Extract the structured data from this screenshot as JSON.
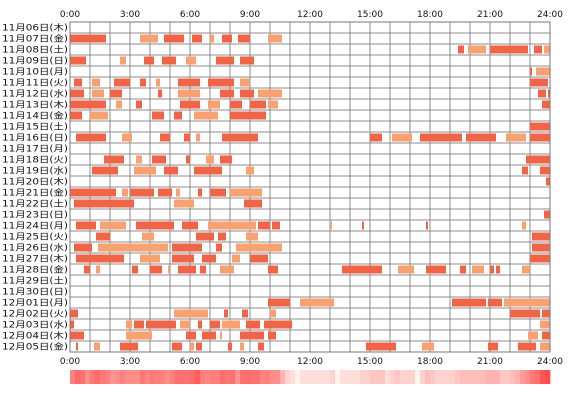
{
  "chart_data": {
    "type": "heatmap",
    "x_ticks": [
      "0:00",
      "3:00",
      "6:00",
      "9:00",
      "12:00",
      "15:00",
      "18:00",
      "21:00",
      "24:00"
    ],
    "x_range_hours": [
      0,
      24
    ],
    "grid": true,
    "colors": {
      "segment_dark": "#f06548",
      "segment_light": "#f8a272",
      "grid": "#8c8c8c",
      "frame": "#777777",
      "density_low": "#fff4ee",
      "density_high": "#ff4c4c"
    },
    "rows": [
      {
        "label": "11月06日(木)",
        "segments": []
      },
      {
        "label": "11月07日(金)",
        "segments": [
          [
            0.0,
            1.8
          ],
          [
            3.5,
            4.4
          ],
          [
            4.7,
            5.7
          ],
          [
            6.1,
            6.6
          ],
          [
            7.0,
            7.2
          ],
          [
            7.6,
            8.1
          ],
          [
            8.4,
            9.0
          ],
          [
            9.9,
            10.6
          ]
        ]
      },
      {
        "label": "11月08日(土)",
        "segments": [
          [
            19.4,
            19.7
          ],
          [
            19.9,
            20.8
          ],
          [
            21.0,
            22.9
          ],
          [
            23.2,
            23.6
          ],
          [
            23.7,
            24.0
          ]
        ]
      },
      {
        "label": "11月09日(日)",
        "segments": [
          [
            0.0,
            0.8
          ],
          [
            2.5,
            2.8
          ],
          [
            3.7,
            4.2
          ],
          [
            4.6,
            5.3
          ],
          [
            5.8,
            6.3
          ],
          [
            7.3,
            8.2
          ],
          [
            8.5,
            9.2
          ]
        ]
      },
      {
        "label": "11月10日(月)",
        "segments": [
          [
            23.0,
            23.1
          ],
          [
            23.3,
            24.0
          ]
        ]
      },
      {
        "label": "11月11日(火)",
        "segments": [
          [
            0.2,
            0.6
          ],
          [
            1.1,
            1.5
          ],
          [
            2.2,
            3.0
          ],
          [
            3.5,
            3.8
          ],
          [
            4.3,
            4.5
          ],
          [
            5.4,
            6.5
          ],
          [
            6.9,
            8.2
          ],
          [
            8.5,
            9.0
          ],
          [
            23.0,
            23.9
          ]
        ]
      },
      {
        "label": "11月12日(水)",
        "segments": [
          [
            0.0,
            0.7
          ],
          [
            1.1,
            1.7
          ],
          [
            2.0,
            2.6
          ],
          [
            4.4,
            4.6
          ],
          [
            5.4,
            6.5
          ],
          [
            7.5,
            8.2
          ],
          [
            8.5,
            9.2
          ],
          [
            9.4,
            10.6
          ],
          [
            23.4,
            23.8
          ],
          [
            23.9,
            24.0
          ]
        ]
      },
      {
        "label": "11月13日(木)",
        "segments": [
          [
            0.0,
            1.8
          ],
          [
            2.3,
            2.6
          ],
          [
            3.3,
            3.6
          ],
          [
            5.5,
            6.5
          ],
          [
            6.9,
            7.5
          ],
          [
            8.0,
            8.6
          ],
          [
            9.0,
            9.8
          ],
          [
            9.9,
            10.4
          ],
          [
            23.6,
            24.0
          ]
        ]
      },
      {
        "label": "11月14日(金)",
        "segments": [
          [
            0.0,
            0.6
          ],
          [
            1.0,
            1.9
          ],
          [
            4.1,
            4.7
          ],
          [
            5.2,
            5.6
          ],
          [
            6.2,
            7.4
          ],
          [
            8.0,
            9.8
          ]
        ]
      },
      {
        "label": "11月15日(土)",
        "segments": [
          [
            23.0,
            24.0
          ]
        ]
      },
      {
        "label": "11月16日(日)",
        "segments": [
          [
            0.3,
            1.8
          ],
          [
            2.6,
            3.1
          ],
          [
            4.5,
            5.0
          ],
          [
            5.7,
            6.0
          ],
          [
            6.3,
            6.5
          ],
          [
            7.6,
            9.4
          ],
          [
            15.0,
            15.6
          ],
          [
            16.1,
            17.1
          ],
          [
            17.5,
            19.6
          ],
          [
            19.8,
            21.3
          ],
          [
            21.8,
            22.8
          ],
          [
            23.0,
            24.0
          ]
        ]
      },
      {
        "label": "11月17日(月)",
        "segments": []
      },
      {
        "label": "11月18日(火)",
        "segments": [
          [
            1.7,
            2.7
          ],
          [
            3.3,
            3.6
          ],
          [
            4.1,
            4.8
          ],
          [
            5.8,
            6.0
          ],
          [
            6.8,
            7.2
          ],
          [
            7.5,
            8.1
          ],
          [
            22.8,
            24.0
          ]
        ]
      },
      {
        "label": "11月19日(水)",
        "segments": [
          [
            1.1,
            2.4
          ],
          [
            3.2,
            4.3
          ],
          [
            4.7,
            5.4
          ],
          [
            6.2,
            7.6
          ],
          [
            8.8,
            9.2
          ],
          [
            22.6,
            22.9
          ],
          [
            23.5,
            24.0
          ]
        ]
      },
      {
        "label": "11月20日(木)",
        "segments": [
          [
            23.8,
            24.0
          ]
        ]
      },
      {
        "label": "11月21日(金)",
        "segments": [
          [
            0.0,
            2.3
          ],
          [
            2.6,
            2.9
          ],
          [
            3.0,
            4.2
          ],
          [
            4.4,
            5.1
          ],
          [
            5.3,
            5.5
          ],
          [
            6.4,
            6.6
          ],
          [
            7.0,
            7.8
          ],
          [
            8.0,
            9.6
          ]
        ]
      },
      {
        "label": "11月22日(土)",
        "segments": [
          [
            0.2,
            3.2
          ],
          [
            5.2,
            6.2
          ],
          [
            8.7,
            9.6
          ]
        ]
      },
      {
        "label": "11月23日(日)",
        "segments": [
          [
            23.7,
            24.0
          ]
        ]
      },
      {
        "label": "11月24日(月)",
        "segments": [
          [
            0.3,
            1.3
          ],
          [
            1.5,
            2.8
          ],
          [
            3.3,
            5.2
          ],
          [
            5.6,
            6.4
          ],
          [
            6.9,
            9.3
          ],
          [
            9.4,
            10.0
          ],
          [
            10.1,
            10.5
          ],
          [
            13.0,
            13.1
          ],
          [
            14.6,
            14.7
          ],
          [
            17.8,
            17.9
          ],
          [
            22.6,
            22.8
          ]
        ]
      },
      {
        "label": "11月25日(火)",
        "segments": [
          [
            1.3,
            2.0
          ],
          [
            3.6,
            4.2
          ],
          [
            6.3,
            7.2
          ],
          [
            7.4,
            7.8
          ],
          [
            8.8,
            9.4
          ],
          [
            23.1,
            24.0
          ]
        ]
      },
      {
        "label": "11月26日(水)",
        "segments": [
          [
            0.2,
            1.1
          ],
          [
            1.4,
            4.9
          ],
          [
            5.1,
            6.6
          ],
          [
            7.3,
            7.6
          ],
          [
            8.3,
            10.6
          ],
          [
            23.1,
            24.0
          ]
        ]
      },
      {
        "label": "11月27日(木)",
        "segments": [
          [
            0.3,
            2.7
          ],
          [
            3.5,
            4.5
          ],
          [
            5.1,
            6.2
          ],
          [
            6.6,
            7.3
          ],
          [
            8.1,
            8.5
          ],
          [
            9.0,
            9.9
          ],
          [
            23.0,
            24.0
          ]
        ]
      },
      {
        "label": "11月28日(金)",
        "segments": [
          [
            0.7,
            1.0
          ],
          [
            1.3,
            1.5
          ],
          [
            3.1,
            3.4
          ],
          [
            4.0,
            4.6
          ],
          [
            4.9,
            5.0
          ],
          [
            5.4,
            6.3
          ],
          [
            6.5,
            6.8
          ],
          [
            7.5,
            8.2
          ],
          [
            9.9,
            10.4
          ],
          [
            13.6,
            15.6
          ],
          [
            16.4,
            17.2
          ],
          [
            17.8,
            18.8
          ],
          [
            19.5,
            19.8
          ],
          [
            20.1,
            20.7
          ],
          [
            21.0,
            21.2
          ],
          [
            21.3,
            21.5
          ],
          [
            22.6,
            23.0
          ]
        ]
      },
      {
        "label": "11月29日(土)",
        "segments": []
      },
      {
        "label": "11月30日(日)",
        "segments": []
      },
      {
        "label": "12月01日(月)",
        "segments": [
          [
            9.9,
            11.0
          ],
          [
            11.5,
            13.2
          ],
          [
            19.1,
            20.8
          ],
          [
            20.9,
            21.6
          ],
          [
            21.7,
            24.0
          ]
        ]
      },
      {
        "label": "12月02日(火)",
        "segments": [
          [
            0.0,
            0.4
          ],
          [
            5.2,
            6.9
          ],
          [
            7.7,
            7.9
          ],
          [
            8.6,
            8.9
          ],
          [
            10.0,
            10.3
          ],
          [
            22.0,
            23.5
          ],
          [
            23.6,
            24.0
          ]
        ]
      },
      {
        "label": "12月03日(水)",
        "segments": [
          [
            0.0,
            0.2
          ],
          [
            2.8,
            3.1
          ],
          [
            3.2,
            3.7
          ],
          [
            3.8,
            5.3
          ],
          [
            5.5,
            6.0
          ],
          [
            6.4,
            6.6
          ],
          [
            7.0,
            7.5
          ],
          [
            7.6,
            8.5
          ],
          [
            8.8,
            9.5
          ],
          [
            9.7,
            11.1
          ],
          [
            23.5,
            24.0
          ]
        ]
      },
      {
        "label": "12月04日(木)",
        "segments": [
          [
            0.0,
            0.7
          ],
          [
            2.8,
            4.1
          ],
          [
            5.8,
            6.3
          ],
          [
            6.6,
            7.3
          ],
          [
            7.5,
            7.6
          ],
          [
            8.5,
            9.7
          ],
          [
            9.9,
            10.3
          ],
          [
            22.9,
            23.4
          ],
          [
            23.6,
            24.0
          ]
        ]
      },
      {
        "label": "12月05日(金)",
        "segments": [
          [
            0.3,
            0.4
          ],
          [
            1.2,
            1.5
          ],
          [
            2.5,
            3.4
          ],
          [
            5.1,
            5.6
          ],
          [
            6.0,
            6.2
          ],
          [
            6.3,
            6.6
          ],
          [
            7.9,
            8.1
          ],
          [
            8.5,
            8.7
          ],
          [
            9.4,
            9.7
          ],
          [
            14.8,
            16.3
          ],
          [
            17.6,
            18.2
          ],
          [
            20.9,
            21.4
          ],
          [
            22.4,
            23.3
          ],
          [
            23.5,
            24.0
          ]
        ]
      }
    ]
  }
}
